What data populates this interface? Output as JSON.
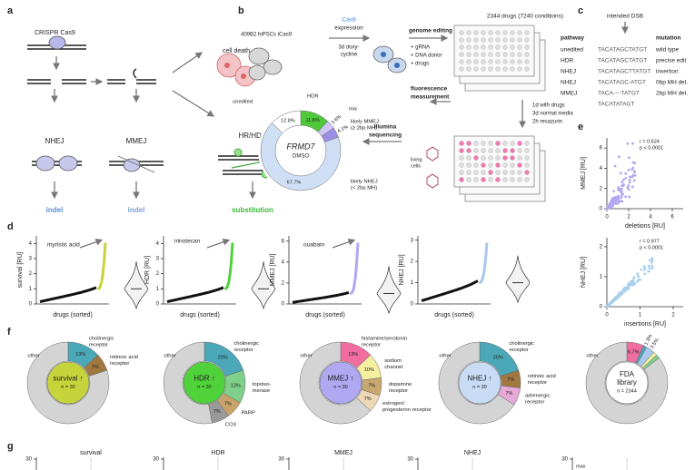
{
  "panel_labels": [
    "a",
    "b",
    "c",
    "d",
    "e",
    "f",
    "g"
  ],
  "a": {
    "cas9": "CRISPR Cas9",
    "cell_death": "cell death",
    "nhej": "NHEJ",
    "mmej": "MMEJ",
    "hr": "HR/HDR",
    "out1": "indel",
    "out2": "indel",
    "out3": "substitution"
  },
  "b": {
    "cells": "409B2 hiPSCs iCas9",
    "cas9": "Cas9",
    "expression": "expression",
    "dox": [
      "3d doxy-",
      "cycline"
    ],
    "editing": "genome editing",
    "editing_items": [
      "+ gRNA",
      "+ DNA donor",
      "+ drugs"
    ],
    "drugs": "2344 drugs (7240 conditions)",
    "steps": [
      "1d with drugs",
      "3d normal media",
      "2h resazurin"
    ],
    "fluor": [
      "fluorescence",
      "measurement"
    ],
    "living": [
      "living",
      "cells"
    ],
    "seq": [
      "Illumina",
      "sequencing"
    ],
    "donut": {
      "type": "pie",
      "gene": "FRMD7",
      "condition": "DMSO",
      "segments": [
        {
          "name": "HDR",
          "value": 11.8,
          "label": "11.8%",
          "color": "#4fc83a"
        },
        {
          "name": "mix",
          "value": 3.6,
          "label": "3.6%",
          "color": "#cdc6f4"
        },
        {
          "name": [
            "likely MMEJ",
            "(≥ 2bp MH)"
          ],
          "value": 4.1,
          "label": "4.1%",
          "color": "#9c8fe6"
        },
        {
          "name": [
            "likely NHEJ",
            "(< 2bp MH)"
          ],
          "value": 67.7,
          "label": "67.7%",
          "color": "#cfe0f6"
        },
        {
          "name": "unedited",
          "value": 12.8,
          "label": "12.8%",
          "color": "#ffffff"
        }
      ]
    }
  },
  "c": {
    "dsb": "intended DSB",
    "headers": [
      "pathway",
      "mutation"
    ],
    "rows": [
      [
        "unedited",
        "TACATAGCTATGT",
        "wild type"
      ],
      [
        "HDR",
        "TACATAGCTATGT",
        "precise edit"
      ],
      [
        "NHEJ",
        "TACATAGCTTATGT",
        "insertion"
      ],
      [
        "NHEJ",
        "TACATAGC-ATGT",
        "0bp MH del."
      ],
      [
        "MMEJ",
        "TACA----TATGT",
        "2bp MH del."
      ]
    ],
    "mmej_alt": "TACATATAGT"
  },
  "d": {
    "plots": [
      {
        "ylabel": "survival [RU]",
        "xlabel": "drugs (sorted)",
        "ylim": [
          0,
          4.5
        ],
        "yticks": [
          0,
          1,
          2,
          3,
          4
        ],
        "annotation": "myristic acid",
        "color": "#c5d43a"
      },
      {
        "ylabel": "HDR [RU]",
        "xlabel": "drugs (sorted)",
        "ylim": [
          0,
          4.5
        ],
        "yticks": [
          0,
          1,
          2,
          3,
          4
        ],
        "annotation": "irinotecan",
        "color": "#4fd23a"
      },
      {
        "ylabel": "MMEJ [RU]",
        "xlabel": "drugs (sorted)",
        "ylim": [
          0,
          6.5
        ],
        "yticks": [
          0,
          2,
          4,
          6
        ],
        "annotation": "ouabain",
        "color": "#b0a8f0"
      },
      {
        "ylabel": "NHEJ [RU]",
        "xlabel": "drugs (sorted)",
        "ylim": [
          0,
          3.2
        ],
        "yticks": [
          0,
          1,
          2,
          3
        ],
        "color": "#a8c8ee"
      }
    ]
  },
  "e": {
    "plots": [
      {
        "ylabel": "MMEJ [RU]",
        "xlabel": "deletions [RU]",
        "xlim": [
          0,
          7
        ],
        "ylim": [
          0,
          7
        ],
        "xticks": [
          0,
          2,
          4,
          6
        ],
        "yticks": [
          0,
          2,
          4,
          6
        ],
        "r": "r = 0.624",
        "p": "p < 0.0001",
        "color": "#b0a8f0"
      },
      {
        "ylabel": "NHEJ [RU]",
        "xlabel": "insertions [RU]",
        "xlim": [
          0,
          2.3
        ],
        "ylim": [
          0,
          2.3
        ],
        "xticks": [
          0,
          1,
          2
        ],
        "yticks": [
          0,
          1,
          2
        ],
        "r": "r = 0.977",
        "p": "p < 0.0001",
        "color": "#a8d0ee"
      }
    ]
  },
  "f": {
    "donuts": [
      {
        "type": "pie",
        "center": [
          "survival ↑",
          "n = 30"
        ],
        "color": "#c5d43a",
        "segments": [
          {
            "name": [
              "cholinergic",
              "receptor"
            ],
            "value": 13,
            "label": "13%",
            "color": "#4aa8b8"
          },
          {
            "name": [
              "retinoic acid",
              "receptor"
            ],
            "value": 7,
            "label": "7%",
            "color": "#a07840"
          },
          {
            "name": "other",
            "value": 80,
            "color": "#d4d4d4"
          }
        ]
      },
      {
        "type": "pie",
        "center": [
          "HDR ↑",
          "n = 30"
        ],
        "color": "#4fd23a",
        "segments": [
          {
            "name": [
              "cholinergic",
              "receptor"
            ],
            "value": 20,
            "label": "20%",
            "color": "#4aa8b8"
          },
          {
            "name": [
              "topoiso-",
              "merase"
            ],
            "value": 13,
            "label": "13%",
            "color": "#7fd08a"
          },
          {
            "name": "PARP",
            "value": 7,
            "label": "7%",
            "color": "#c9a36a"
          },
          {
            "name": "COX",
            "value": 7,
            "label": "7%",
            "color": "#9a9a9a"
          },
          {
            "name": "other",
            "value": 53,
            "color": "#d4d4d4"
          }
        ]
      },
      {
        "type": "pie",
        "center": [
          "MMEJ ↑",
          "n = 30"
        ],
        "color": "#b0a8f0",
        "segments": [
          {
            "name": [
              "histamine/serotonin",
              "receptor"
            ],
            "value": 13,
            "label": "13%",
            "color": "#f06ea0"
          },
          {
            "name": [
              "sodium",
              "channel"
            ],
            "value": 10,
            "label": "10%",
            "color": "#f5efa0"
          },
          {
            "name": [
              "dopamine",
              "receptor"
            ],
            "value": 7,
            "label": "7%",
            "color": "#c8a870"
          },
          {
            "name": [
              "estrogen/",
              "progesteron receptor"
            ],
            "value": 7,
            "label": "7%",
            "color": "#eed8b8"
          },
          {
            "name": "other",
            "value": 63,
            "color": "#d4d4d4"
          }
        ]
      },
      {
        "type": "pie",
        "center": [
          "NHEJ ↑",
          "n = 30"
        ],
        "color": "#c8dcf5",
        "segments": [
          {
            "name": [
              "cholinergic",
              "receptor"
            ],
            "value": 20,
            "label": "20%",
            "color": "#4aa8b8"
          },
          {
            "name": [
              "retinoic acid",
              "receptor"
            ],
            "value": 7,
            "label": "7%",
            "color": "#a07840"
          },
          {
            "name": [
              "adrenergic",
              "receptor"
            ],
            "value": 7,
            "label": "7%",
            "color": "#e8a8d8"
          },
          {
            "name": "other",
            "value": 66,
            "color": "#d4d4d4"
          }
        ]
      },
      {
        "type": "pie",
        "center": [
          "FDA",
          "library",
          "n = 2344"
        ],
        "color": "#ffffff",
        "segments": [
          {
            "value": 6.7,
            "label": "6.7%",
            "color": "#f06ea0"
          },
          {
            "value": 1.3,
            "label": "1.3%",
            "color": "#4aa8b8"
          },
          {
            "value": 3.5,
            "label": "3.5%",
            "color": "#a8c8ee"
          },
          {
            "value": 1.5,
            "color": "#f5efa0"
          },
          {
            "value": 1.5,
            "color": "#7fd08a"
          },
          {
            "name": "other",
            "value": 85.5,
            "color": "#d4d4d4"
          }
        ]
      }
    ]
  },
  "g": {
    "plots": [
      {
        "title": "survival",
        "yticks": [
          30
        ]
      },
      {
        "title": "HDR",
        "yticks": [
          30
        ]
      },
      {
        "title": "MMEJ",
        "yticks": [
          30
        ]
      },
      {
        "title": "NHEJ",
        "yticks": [
          30
        ]
      },
      {
        "yticks": [
          30
        ],
        "note": "max"
      }
    ]
  }
}
